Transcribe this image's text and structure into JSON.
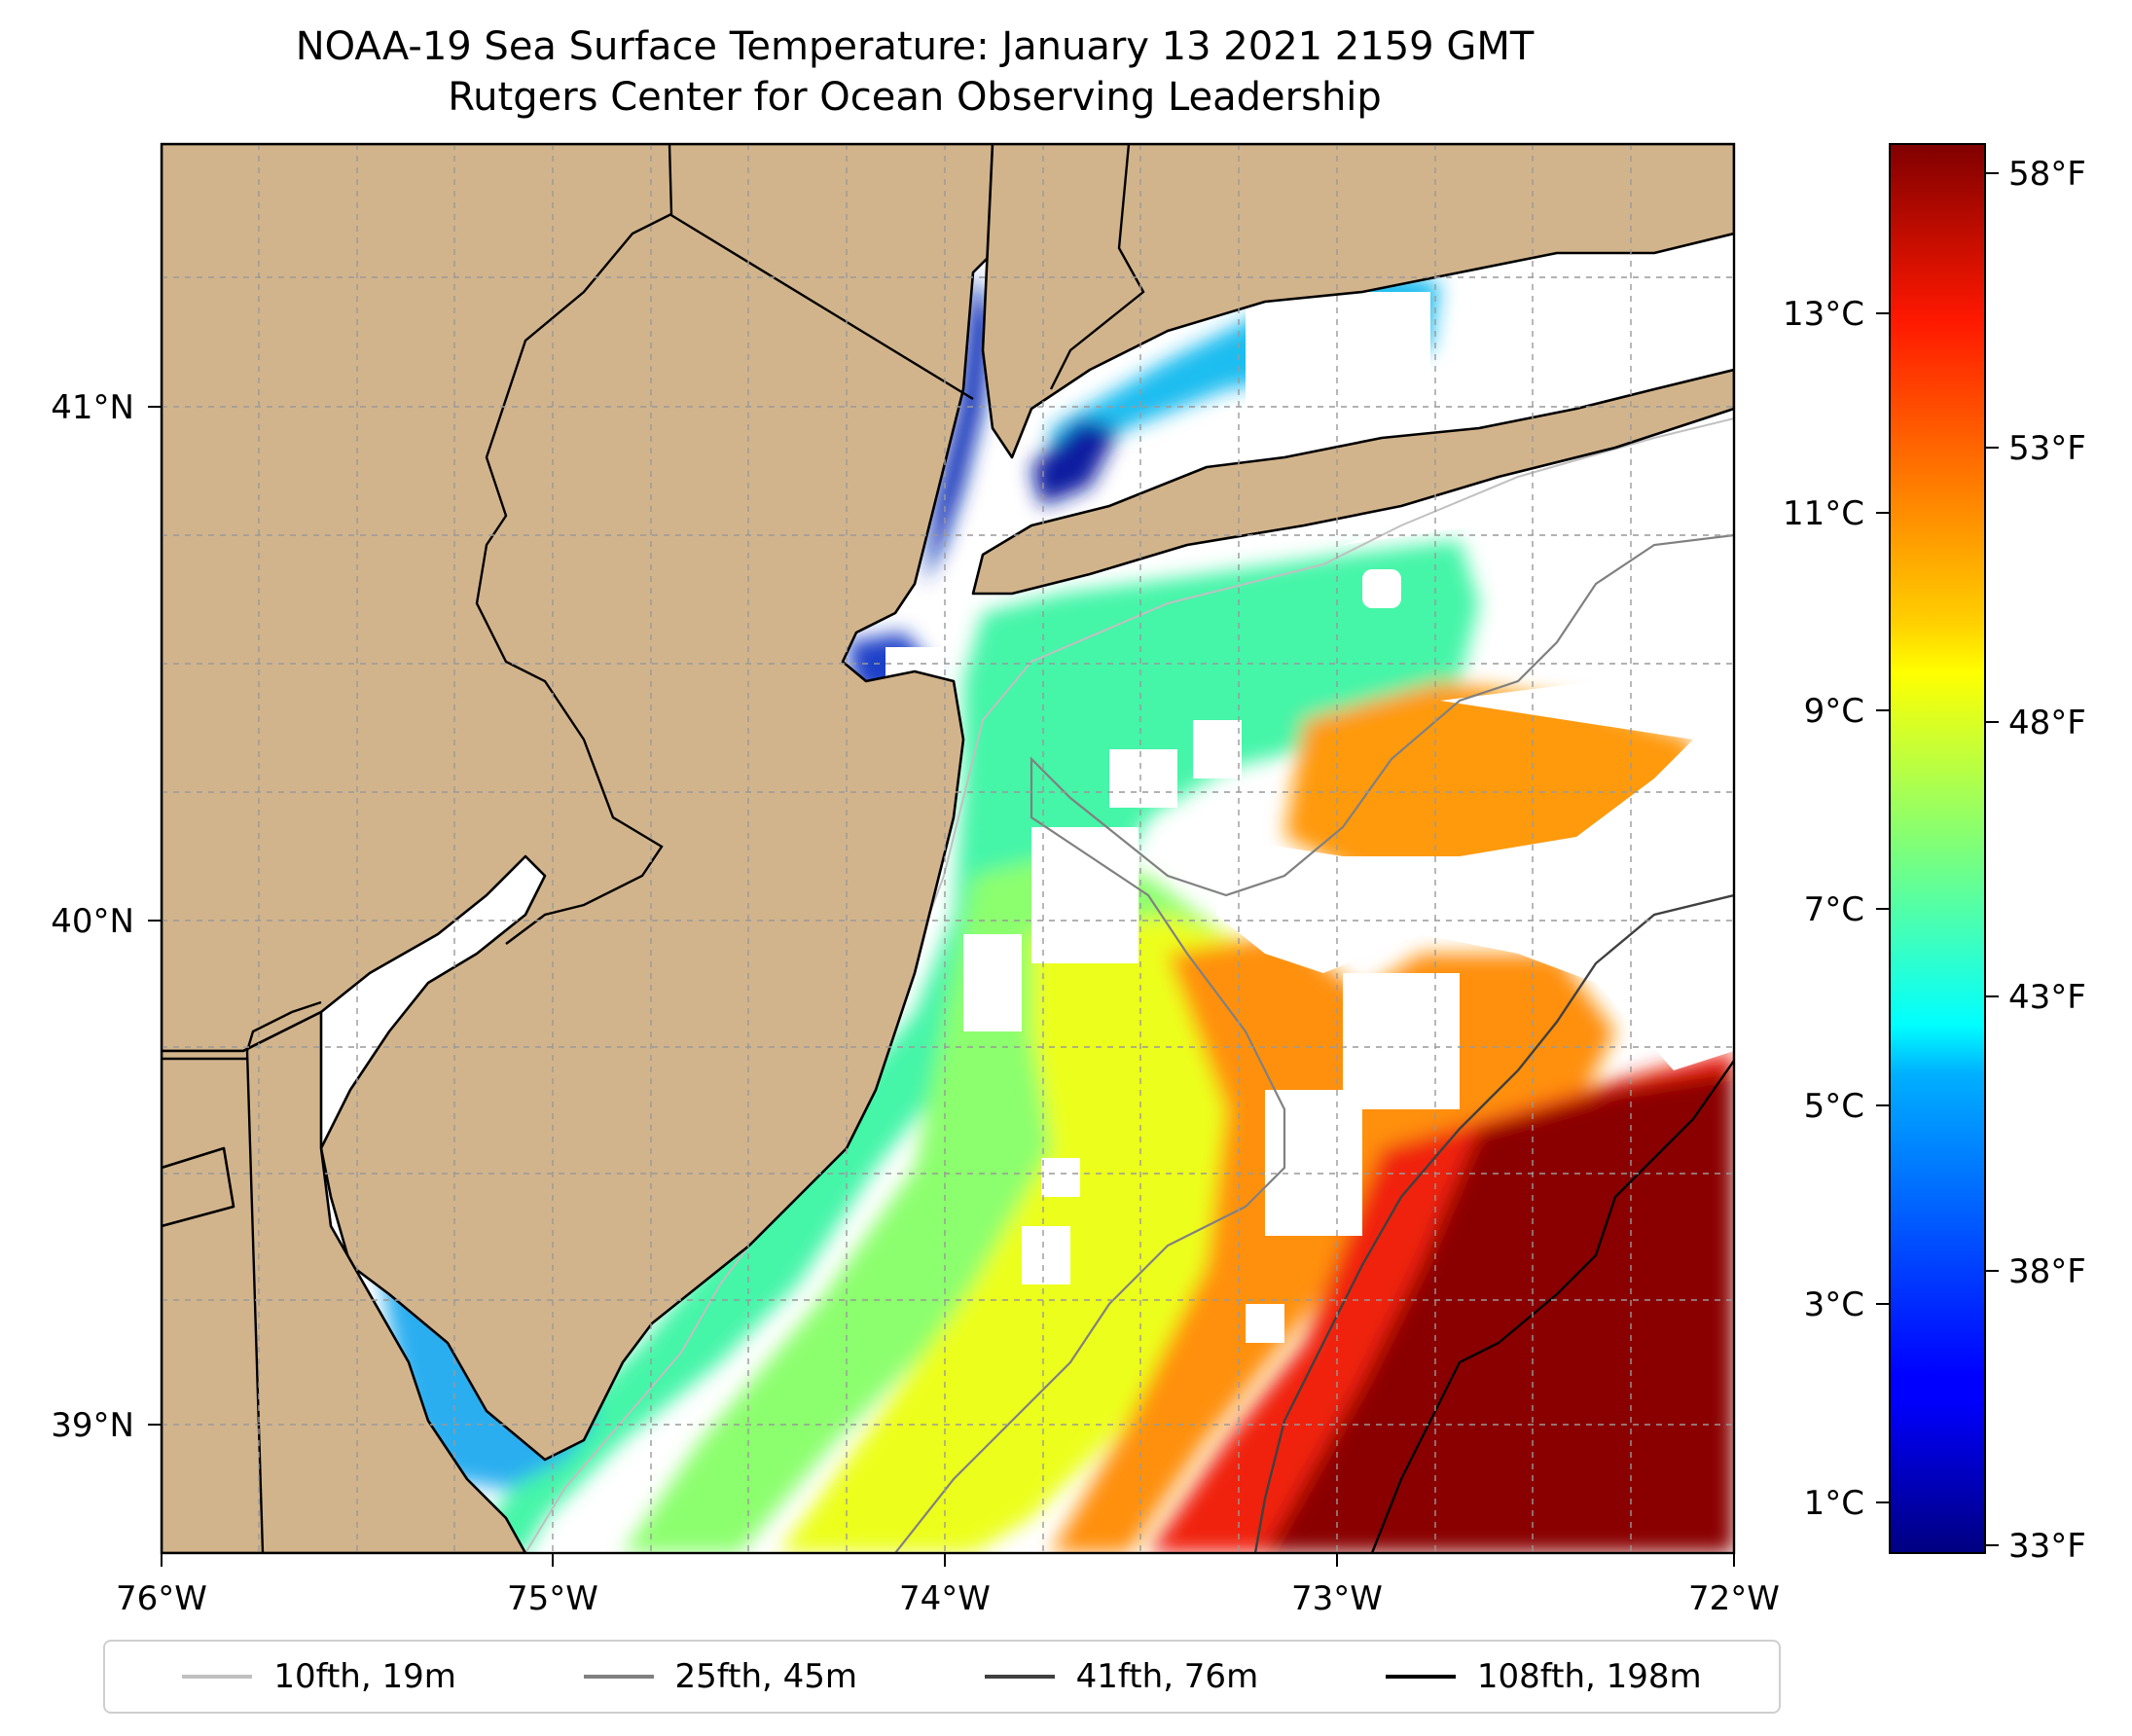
{
  "title": {
    "line1": "NOAA-19 Sea Surface Temperature: January 13 2021 2159 GMT",
    "line2": "Rutgers Center for Ocean Observing Leadership"
  },
  "map": {
    "longitude_ticks": [
      "76°W",
      "75°W",
      "74°W",
      "73°W",
      "72°W"
    ],
    "latitude_ticks": [
      "41°N",
      "40°N",
      "39°N"
    ],
    "extent": {
      "lon": [
        -76,
        -72
      ],
      "lat": [
        38.75,
        41.5
      ]
    },
    "colors": {
      "land": "#d2b48c",
      "no_data": "#ffffff",
      "coastline": "#000000",
      "gridlines": "#999999"
    }
  },
  "colorbar": {
    "colormap": "jet",
    "celsius_ticks": [
      "13°C",
      "11°C",
      "9°C",
      "7°C",
      "5°C",
      "3°C",
      "1°C"
    ],
    "fahrenheit_ticks": [
      "58°F",
      "53°F",
      "48°F",
      "43°F",
      "38°F",
      "33°F"
    ],
    "range_f": [
      32.7,
      58.7
    ]
  },
  "legend": {
    "entries": [
      {
        "label": "10fth, 19m",
        "color": "#c0c0c0"
      },
      {
        "label": "25fth, 45m",
        "color": "#808080"
      },
      {
        "label": "41fth, 76m",
        "color": "#404040"
      },
      {
        "label": "108fth, 198m",
        "color": "#000000"
      }
    ]
  }
}
